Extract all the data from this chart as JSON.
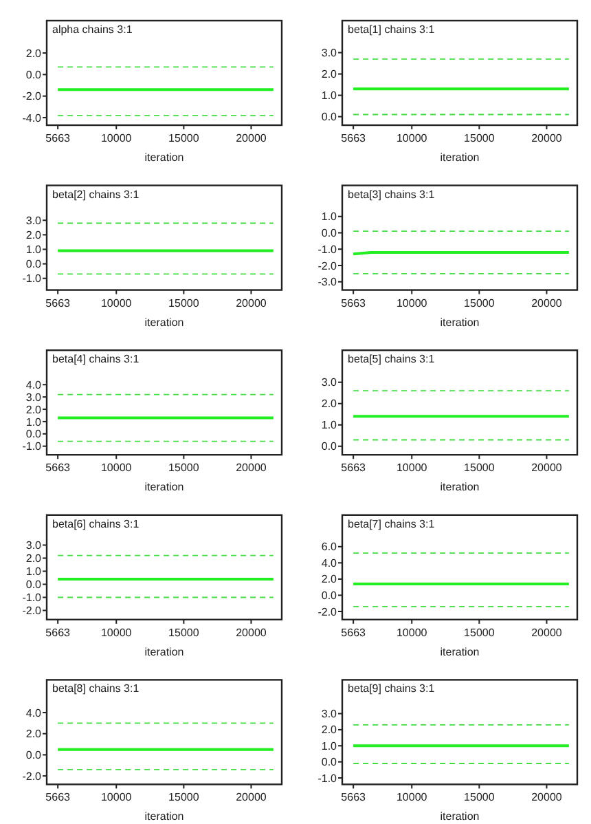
{
  "chart_data": [
    {
      "type": "line",
      "title": "alpha chains 3:1",
      "xlabel": "iteration",
      "xlim": [
        4840,
        22270
      ],
      "xticks": [
        5663,
        10000,
        15000,
        20000
      ],
      "ylim": [
        -4.7,
        5.0
      ],
      "yticks": [
        {
          "value": 2,
          "label": "2.0"
        },
        {
          "value": 0,
          "label": "0.0"
        },
        {
          "value": -2,
          "label": "-2.0"
        },
        {
          "value": -4,
          "label": "-4.0"
        }
      ],
      "series": [
        {
          "color": "#44dd44",
          "line_style": "dashed",
          "x": [
            5663,
            21650
          ],
          "values": [
            0.7,
            0.7
          ]
        },
        {
          "color": "#22ee22",
          "line_style": "solid",
          "x": [
            5663,
            21650
          ],
          "values": [
            -1.4,
            -1.4
          ]
        },
        {
          "color": "#44dd44",
          "line_style": "dashed",
          "x": [
            5663,
            21650
          ],
          "values": [
            -3.8,
            -3.8
          ]
        }
      ]
    },
    {
      "type": "line",
      "title": "beta[1] chains 3:1",
      "xlabel": "iteration",
      "xlim": [
        4840,
        22270
      ],
      "xticks": [
        5663,
        10000,
        15000,
        20000
      ],
      "ylim": [
        -0.4,
        4.5
      ],
      "yticks": [
        {
          "value": 3,
          "label": "3.0"
        },
        {
          "value": 2,
          "label": "2.0"
        },
        {
          "value": 1,
          "label": "1.0"
        },
        {
          "value": 0,
          "label": "0.0"
        }
      ],
      "series": [
        {
          "color": "#44dd44",
          "line_style": "dashed",
          "x": [
            5663,
            21650
          ],
          "values": [
            2.7,
            2.7
          ]
        },
        {
          "color": "#22ee22",
          "line_style": "solid",
          "x": [
            5663,
            21650
          ],
          "values": [
            1.3,
            1.3
          ]
        },
        {
          "color": "#44dd44",
          "line_style": "dashed",
          "x": [
            5663,
            21650
          ],
          "values": [
            0.1,
            0.1
          ]
        }
      ]
    },
    {
      "type": "line",
      "title": "beta[2] chains 3:1",
      "xlabel": "iteration",
      "xlim": [
        4840,
        22270
      ],
      "xticks": [
        5663,
        10000,
        15000,
        20000
      ],
      "ylim": [
        -1.8,
        5.4
      ],
      "yticks": [
        {
          "value": 3,
          "label": "3.0"
        },
        {
          "value": 2,
          "label": "2.0"
        },
        {
          "value": 1,
          "label": "1.0"
        },
        {
          "value": 0,
          "label": "0.0"
        },
        {
          "value": -1,
          "label": "-1.0"
        }
      ],
      "series": [
        {
          "color": "#44dd44",
          "line_style": "dashed",
          "x": [
            5663,
            21650
          ],
          "values": [
            2.8,
            2.8
          ]
        },
        {
          "color": "#22ee22",
          "line_style": "solid",
          "x": [
            5663,
            21650
          ],
          "values": [
            0.9,
            0.9
          ]
        },
        {
          "color": "#44dd44",
          "line_style": "dashed",
          "x": [
            5663,
            21650
          ],
          "values": [
            -0.7,
            -0.7
          ]
        }
      ]
    },
    {
      "type": "line",
      "title": "beta[3] chains 3:1",
      "xlabel": "iteration",
      "xlim": [
        4840,
        22270
      ],
      "xticks": [
        5663,
        10000,
        15000,
        20000
      ],
      "ylim": [
        -3.5,
        2.9
      ],
      "yticks": [
        {
          "value": 1,
          "label": "1.0"
        },
        {
          "value": 0,
          "label": "0.0"
        },
        {
          "value": -1,
          "label": "-1.0"
        },
        {
          "value": -2,
          "label": "-2.0"
        },
        {
          "value": -3,
          "label": "-3.0"
        }
      ],
      "series": [
        {
          "color": "#44dd44",
          "line_style": "dashed",
          "x": [
            5663,
            21650
          ],
          "values": [
            0.1,
            0.1
          ]
        },
        {
          "color": "#22ee22",
          "line_style": "solid",
          "x": [
            5663,
            7000,
            21650
          ],
          "values": [
            -1.3,
            -1.2,
            -1.2
          ]
        },
        {
          "color": "#44dd44",
          "line_style": "dashed",
          "x": [
            5663,
            21650
          ],
          "values": [
            -2.5,
            -2.5
          ]
        }
      ]
    },
    {
      "type": "line",
      "title": "beta[4] chains 3:1",
      "xlabel": "iteration",
      "xlim": [
        4840,
        22270
      ],
      "xticks": [
        5663,
        10000,
        15000,
        20000
      ],
      "ylim": [
        -1.7,
        6.8
      ],
      "yticks": [
        {
          "value": 4,
          "label": "4.0"
        },
        {
          "value": 3,
          "label": "3.0"
        },
        {
          "value": 2,
          "label": "2.0"
        },
        {
          "value": 1,
          "label": "1.0"
        },
        {
          "value": 0,
          "label": "0.0"
        },
        {
          "value": -1,
          "label": "-1.0"
        }
      ],
      "series": [
        {
          "color": "#44dd44",
          "line_style": "dashed",
          "x": [
            5663,
            21650
          ],
          "values": [
            3.2,
            3.2
          ]
        },
        {
          "color": "#22ee22",
          "line_style": "solid",
          "x": [
            5663,
            21650
          ],
          "values": [
            1.3,
            1.3
          ]
        },
        {
          "color": "#44dd44",
          "line_style": "dashed",
          "x": [
            5663,
            21650
          ],
          "values": [
            -0.6,
            -0.6
          ]
        }
      ]
    },
    {
      "type": "line",
      "title": "beta[5] chains 3:1",
      "xlabel": "iteration",
      "xlim": [
        4840,
        22270
      ],
      "xticks": [
        5663,
        10000,
        15000,
        20000
      ],
      "ylim": [
        -0.4,
        4.5
      ],
      "yticks": [
        {
          "value": 3,
          "label": "3.0"
        },
        {
          "value": 2,
          "label": "2.0"
        },
        {
          "value": 1,
          "label": "1.0"
        },
        {
          "value": 0,
          "label": "0.0"
        }
      ],
      "series": [
        {
          "color": "#44dd44",
          "line_style": "dashed",
          "x": [
            5663,
            21650
          ],
          "values": [
            2.6,
            2.6
          ]
        },
        {
          "color": "#22ee22",
          "line_style": "solid",
          "x": [
            5663,
            21650
          ],
          "values": [
            1.4,
            1.4
          ]
        },
        {
          "color": "#44dd44",
          "line_style": "dashed",
          "x": [
            5663,
            21650
          ],
          "values": [
            0.3,
            0.3
          ]
        }
      ]
    },
    {
      "type": "line",
      "title": "beta[6] chains 3:1",
      "xlabel": "iteration",
      "xlim": [
        4840,
        22270
      ],
      "xticks": [
        5663,
        10000,
        15000,
        20000
      ],
      "ylim": [
        -2.7,
        5.3
      ],
      "yticks": [
        {
          "value": 3,
          "label": "3.0"
        },
        {
          "value": 2,
          "label": "2.0"
        },
        {
          "value": 1,
          "label": "1.0"
        },
        {
          "value": 0,
          "label": "0.0"
        },
        {
          "value": -1,
          "label": "-1.0"
        },
        {
          "value": -2,
          "label": "-2.0"
        }
      ],
      "series": [
        {
          "color": "#44dd44",
          "line_style": "dashed",
          "x": [
            5663,
            21650
          ],
          "values": [
            2.2,
            2.2
          ]
        },
        {
          "color": "#22ee22",
          "line_style": "solid",
          "x": [
            5663,
            21650
          ],
          "values": [
            0.4,
            0.4
          ]
        },
        {
          "color": "#44dd44",
          "line_style": "dashed",
          "x": [
            5663,
            21650
          ],
          "values": [
            -1.0,
            -1.0
          ]
        }
      ]
    },
    {
      "type": "line",
      "title": "beta[7] chains 3:1",
      "xlabel": "iteration",
      "xlim": [
        4840,
        22270
      ],
      "xticks": [
        5663,
        10000,
        15000,
        20000
      ],
      "ylim": [
        -3.0,
        9.9
      ],
      "yticks": [
        {
          "value": 6,
          "label": "6.0"
        },
        {
          "value": 4,
          "label": "4.0"
        },
        {
          "value": 2,
          "label": "2.0"
        },
        {
          "value": 0,
          "label": "0.0"
        },
        {
          "value": -2,
          "label": "-2.0"
        }
      ],
      "series": [
        {
          "color": "#44dd44",
          "line_style": "dashed",
          "x": [
            5663,
            21650
          ],
          "values": [
            5.2,
            5.2
          ]
        },
        {
          "color": "#22ee22",
          "line_style": "solid",
          "x": [
            5663,
            21650
          ],
          "values": [
            1.4,
            1.4
          ]
        },
        {
          "color": "#44dd44",
          "line_style": "dashed",
          "x": [
            5663,
            21650
          ],
          "values": [
            -1.4,
            -1.4
          ]
        }
      ]
    },
    {
      "type": "line",
      "title": "beta[8] chains 3:1",
      "xlabel": "iteration",
      "xlim": [
        4840,
        22270
      ],
      "xticks": [
        5663,
        10000,
        15000,
        20000
      ],
      "ylim": [
        -2.8,
        7.1
      ],
      "yticks": [
        {
          "value": 4,
          "label": "4.0"
        },
        {
          "value": 2,
          "label": "2.0"
        },
        {
          "value": 0,
          "label": "0.0"
        },
        {
          "value": -2,
          "label": "-2.0"
        }
      ],
      "series": [
        {
          "color": "#44dd44",
          "line_style": "dashed",
          "x": [
            5663,
            21650
          ],
          "values": [
            3.0,
            3.0
          ]
        },
        {
          "color": "#22ee22",
          "line_style": "solid",
          "x": [
            5663,
            21650
          ],
          "values": [
            0.5,
            0.5
          ]
        },
        {
          "color": "#44dd44",
          "line_style": "dashed",
          "x": [
            5663,
            21650
          ],
          "values": [
            -1.4,
            -1.4
          ]
        }
      ]
    },
    {
      "type": "line",
      "title": "beta[9] chains 3:1",
      "xlabel": "iteration",
      "xlim": [
        4840,
        22270
      ],
      "xticks": [
        5663,
        10000,
        15000,
        20000
      ],
      "ylim": [
        -1.4,
        5.1
      ],
      "yticks": [
        {
          "value": 3,
          "label": "3.0"
        },
        {
          "value": 2,
          "label": "2.0"
        },
        {
          "value": 1,
          "label": "1.0"
        },
        {
          "value": 0,
          "label": "0.0"
        },
        {
          "value": -1,
          "label": "-1.0"
        }
      ],
      "series": [
        {
          "color": "#44dd44",
          "line_style": "dashed",
          "x": [
            5663,
            21650
          ],
          "values": [
            2.3,
            2.3
          ]
        },
        {
          "color": "#22ee22",
          "line_style": "solid",
          "x": [
            5663,
            21650
          ],
          "values": [
            1.0,
            1.0
          ]
        },
        {
          "color": "#44dd44",
          "line_style": "dashed",
          "x": [
            5663,
            21650
          ],
          "values": [
            -0.1,
            -0.1
          ]
        }
      ]
    }
  ]
}
